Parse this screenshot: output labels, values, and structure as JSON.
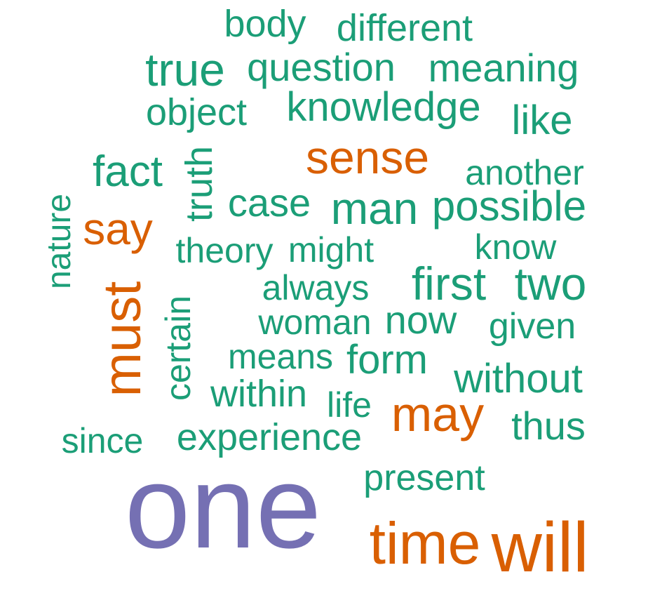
{
  "palette": {
    "teal": "#1b9e77",
    "orange": "#d95f02",
    "purple": "#7570b3"
  },
  "words": [
    {
      "text": "body",
      "color": "teal"
    },
    {
      "text": "different",
      "color": "teal"
    },
    {
      "text": "true",
      "color": "teal"
    },
    {
      "text": "question",
      "color": "teal"
    },
    {
      "text": "meaning",
      "color": "teal"
    },
    {
      "text": "object",
      "color": "teal"
    },
    {
      "text": "knowledge",
      "color": "teal"
    },
    {
      "text": "like",
      "color": "teal"
    },
    {
      "text": "sense",
      "color": "orange"
    },
    {
      "text": "fact",
      "color": "teal"
    },
    {
      "text": "truth",
      "color": "teal"
    },
    {
      "text": "another",
      "color": "teal"
    },
    {
      "text": "nature",
      "color": "teal"
    },
    {
      "text": "case",
      "color": "teal"
    },
    {
      "text": "man",
      "color": "teal"
    },
    {
      "text": "possible",
      "color": "teal"
    },
    {
      "text": "say",
      "color": "orange"
    },
    {
      "text": "theory",
      "color": "teal"
    },
    {
      "text": "might",
      "color": "teal"
    },
    {
      "text": "know",
      "color": "teal"
    },
    {
      "text": "always",
      "color": "teal"
    },
    {
      "text": "first",
      "color": "teal"
    },
    {
      "text": "two",
      "color": "teal"
    },
    {
      "text": "must",
      "color": "orange"
    },
    {
      "text": "certain",
      "color": "teal"
    },
    {
      "text": "woman",
      "color": "teal"
    },
    {
      "text": "now",
      "color": "teal"
    },
    {
      "text": "given",
      "color": "teal"
    },
    {
      "text": "means",
      "color": "teal"
    },
    {
      "text": "form",
      "color": "teal"
    },
    {
      "text": "without",
      "color": "teal"
    },
    {
      "text": "within",
      "color": "teal"
    },
    {
      "text": "life",
      "color": "teal"
    },
    {
      "text": "may",
      "color": "orange"
    },
    {
      "text": "thus",
      "color": "teal"
    },
    {
      "text": "since",
      "color": "teal"
    },
    {
      "text": "experience",
      "color": "teal"
    },
    {
      "text": "present",
      "color": "teal"
    },
    {
      "text": "one",
      "color": "purple"
    },
    {
      "text": "time",
      "color": "orange"
    },
    {
      "text": "will",
      "color": "orange"
    }
  ]
}
